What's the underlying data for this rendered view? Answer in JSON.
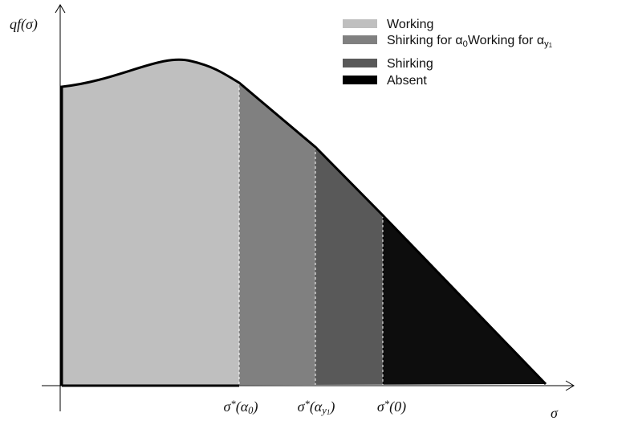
{
  "y_axis_label": [
    {
      "text": "qf(σ)"
    }
  ],
  "x_axis_label": [
    {
      "text": "σ"
    }
  ],
  "legend": [
    [
      {
        "text": "Working"
      }
    ],
    [
      {
        "text": "Shirking for α"
      },
      {
        "sub": "0"
      },
      {
        "text": "Working for α"
      },
      {
        "sub": "y"
      },
      {
        "subsub": "1"
      }
    ],
    [
      {
        "text": "Shirking"
      }
    ],
    [
      {
        "text": "Absent"
      }
    ]
  ],
  "x_labels": [
    [
      {
        "text": "σ"
      },
      {
        "sup": "*"
      },
      {
        "text": "(α"
      },
      {
        "sub": "0"
      },
      {
        "text": ")"
      }
    ],
    [
      {
        "text": "σ"
      },
      {
        "sup": "*"
      },
      {
        "text": "(α"
      },
      {
        "sub": "y"
      },
      {
        "subsub": "1"
      },
      {
        "text": ")"
      }
    ],
    [
      {
        "text": "σ"
      },
      {
        "sup": "*"
      },
      {
        "text": "(0)"
      }
    ]
  ]
}
